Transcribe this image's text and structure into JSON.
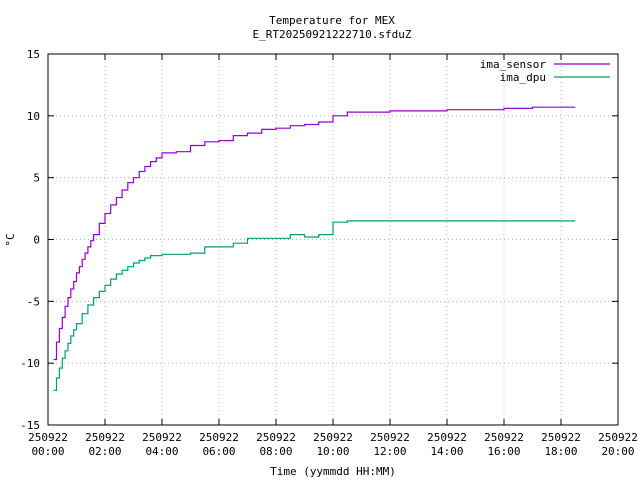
{
  "chart_data": {
    "type": "line",
    "title": "Temperature for MEX",
    "subtitle": "E_RT20250921222710.sfduZ",
    "xlabel": "Time (yymmdd HH:MM)",
    "ylabel": "°C",
    "xlim_hours": [
      0,
      20
    ],
    "ylim": [
      -15,
      15
    ],
    "grid": true,
    "legend_position": "top-right",
    "x_ticks": [
      {
        "date": "250922",
        "time": "00:00",
        "hour": 0
      },
      {
        "date": "250922",
        "time": "02:00",
        "hour": 2
      },
      {
        "date": "250922",
        "time": "04:00",
        "hour": 4
      },
      {
        "date": "250922",
        "time": "06:00",
        "hour": 6
      },
      {
        "date": "250922",
        "time": "08:00",
        "hour": 8
      },
      {
        "date": "250922",
        "time": "10:00",
        "hour": 10
      },
      {
        "date": "250922",
        "time": "12:00",
        "hour": 12
      },
      {
        "date": "250922",
        "time": "14:00",
        "hour": 14
      },
      {
        "date": "250922",
        "time": "16:00",
        "hour": 16
      },
      {
        "date": "250922",
        "time": "18:00",
        "hour": 18
      },
      {
        "date": "250922",
        "time": "20:00",
        "hour": 20
      }
    ],
    "y_ticks": [
      -15,
      -10,
      -5,
      0,
      5,
      10,
      15
    ],
    "series": [
      {
        "name": "ima_sensor",
        "color": "#9400d3",
        "x_hours": [
          0.2,
          0.3,
          0.4,
          0.5,
          0.6,
          0.7,
          0.8,
          0.9,
          1.0,
          1.1,
          1.2,
          1.3,
          1.4,
          1.5,
          1.6,
          1.8,
          2.0,
          2.2,
          2.4,
          2.6,
          2.8,
          3.0,
          3.2,
          3.4,
          3.6,
          3.8,
          4.0,
          4.5,
          5.0,
          5.5,
          6.0,
          6.5,
          7.0,
          7.5,
          8.0,
          8.5,
          9.0,
          9.5,
          10.0,
          10.5,
          11.0,
          12.0,
          13.0,
          14.0,
          15.0,
          16.0,
          17.0,
          18.0,
          18.5
        ],
        "values": [
          -9.7,
          -8.3,
          -7.2,
          -6.3,
          -5.4,
          -4.7,
          -4.0,
          -3.4,
          -2.7,
          -2.2,
          -1.6,
          -1.1,
          -0.6,
          -0.1,
          0.4,
          1.3,
          2.1,
          2.8,
          3.4,
          4.0,
          4.6,
          5.0,
          5.5,
          5.9,
          6.3,
          6.6,
          7.0,
          7.1,
          7.6,
          7.9,
          8.0,
          8.4,
          8.6,
          8.9,
          9.0,
          9.2,
          9.3,
          9.5,
          10.0,
          10.3,
          10.3,
          10.4,
          10.4,
          10.5,
          10.5,
          10.6,
          10.7,
          10.7,
          10.7
        ]
      },
      {
        "name": "ima_dpu",
        "color": "#009e73",
        "x_hours": [
          0.2,
          0.3,
          0.4,
          0.5,
          0.6,
          0.7,
          0.8,
          0.9,
          1.0,
          1.2,
          1.4,
          1.6,
          1.8,
          2.0,
          2.2,
          2.4,
          2.6,
          2.8,
          3.0,
          3.2,
          3.4,
          3.6,
          4.0,
          4.5,
          5.0,
          5.5,
          6.0,
          6.5,
          7.0,
          7.5,
          8.0,
          8.5,
          9.0,
          9.5,
          10.0,
          10.5,
          11.0,
          12.0,
          13.0,
          14.0,
          15.0,
          16.0,
          17.0,
          18.0,
          18.5
        ],
        "values": [
          -12.2,
          -11.2,
          -10.4,
          -9.6,
          -9.0,
          -8.4,
          -7.8,
          -7.3,
          -6.8,
          -6.0,
          -5.3,
          -4.7,
          -4.2,
          -3.7,
          -3.2,
          -2.8,
          -2.5,
          -2.2,
          -1.9,
          -1.7,
          -1.5,
          -1.3,
          -1.2,
          -1.2,
          -1.1,
          -0.6,
          -0.6,
          -0.3,
          0.1,
          0.1,
          0.1,
          0.4,
          0.2,
          0.4,
          1.4,
          1.5,
          1.5,
          1.5,
          1.5,
          1.5,
          1.5,
          1.5,
          1.5,
          1.5,
          1.5
        ]
      }
    ]
  }
}
